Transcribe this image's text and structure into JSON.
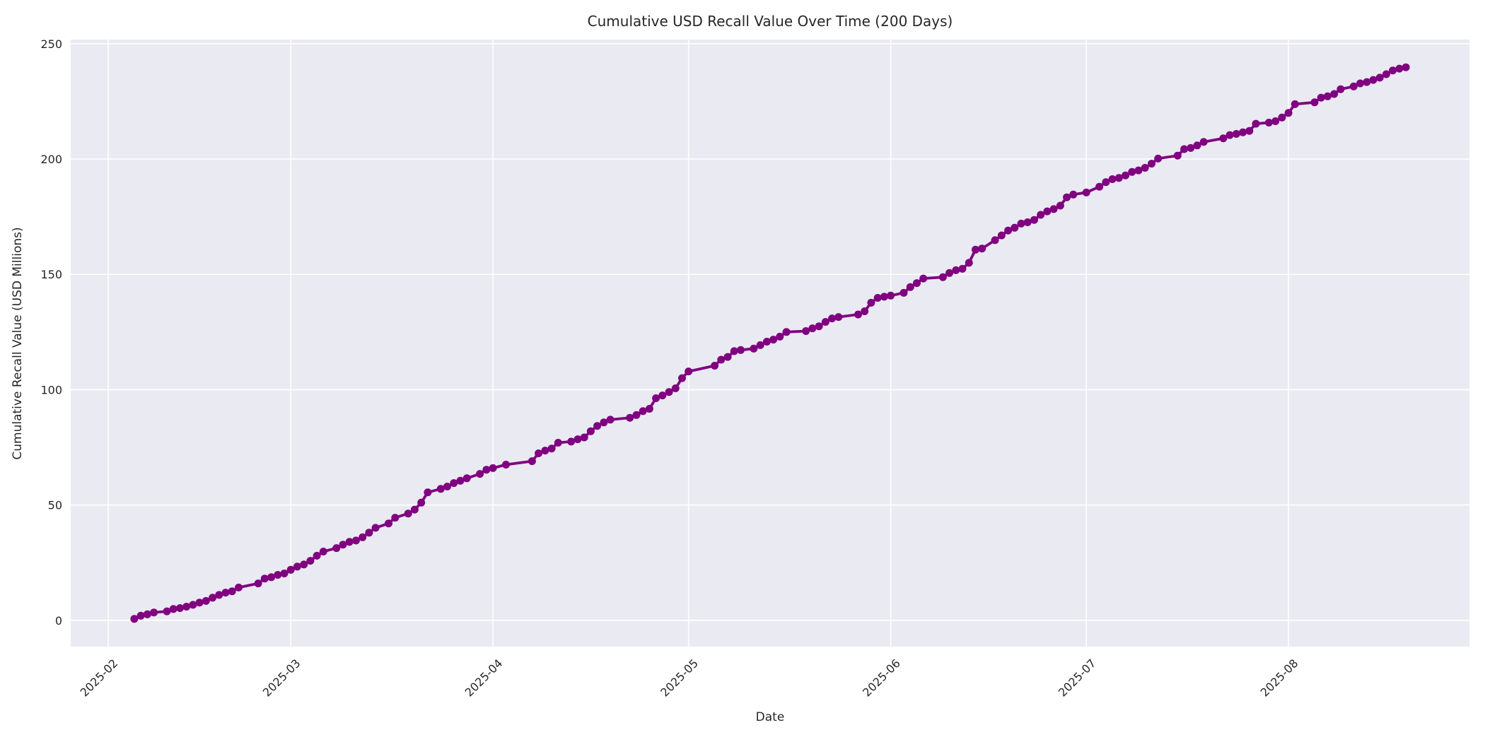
{
  "figure": {
    "background": "#ffffff"
  },
  "chart_data": {
    "type": "line",
    "title": "Cumulative USD Recall Value Over Time (200 Days)",
    "xlabel": "Date",
    "ylabel": "Cumulative Recall Value (USD Millions)",
    "line_color": "#800080",
    "marker": "o",
    "plot_background": "#eaeaf2",
    "grid_color": "#ffffff",
    "text_color": "#262626",
    "grid": true,
    "legend": "none",
    "y_ticks": [
      0,
      50,
      100,
      150,
      200,
      250
    ],
    "ylim": [
      -11.4,
      251.8
    ],
    "x_tick_labels": [
      "2025-02",
      "2025-03",
      "2025-04",
      "2025-05",
      "2025-06",
      "2025-07",
      "2025-08"
    ],
    "x_tick_dates": [
      "2025-02-01",
      "2025-03-01",
      "2025-04-01",
      "2025-05-01",
      "2025-06-01",
      "2025-07-01",
      "2025-08-01"
    ],
    "points": [
      [
        "2025-02-05",
        0.6
      ],
      [
        "2025-02-06",
        2.0
      ],
      [
        "2025-02-07",
        2.6
      ],
      [
        "2025-02-08",
        3.4
      ],
      [
        "2025-02-10",
        3.9
      ],
      [
        "2025-02-11",
        4.9
      ],
      [
        "2025-02-12",
        5.3
      ],
      [
        "2025-02-13",
        5.9
      ],
      [
        "2025-02-14",
        6.7
      ],
      [
        "2025-02-15",
        7.7
      ],
      [
        "2025-02-16",
        8.4
      ],
      [
        "2025-02-17",
        9.8
      ],
      [
        "2025-02-18",
        11.0
      ],
      [
        "2025-02-19",
        12.0
      ],
      [
        "2025-02-20",
        12.6
      ],
      [
        "2025-02-21",
        14.2
      ],
      [
        "2025-02-24",
        16.0
      ],
      [
        "2025-02-25",
        18.1
      ],
      [
        "2025-02-26",
        18.7
      ],
      [
        "2025-02-27",
        19.7
      ],
      [
        "2025-02-28",
        20.3
      ],
      [
        "2025-03-01",
        21.9
      ],
      [
        "2025-03-02",
        23.3
      ],
      [
        "2025-03-03",
        24.2
      ],
      [
        "2025-03-04",
        25.8
      ],
      [
        "2025-03-05",
        28.0
      ],
      [
        "2025-03-06",
        29.8
      ],
      [
        "2025-03-08",
        31.3
      ],
      [
        "2025-03-09",
        32.8
      ],
      [
        "2025-03-10",
        34.0
      ],
      [
        "2025-03-11",
        34.6
      ],
      [
        "2025-03-12",
        36.0
      ],
      [
        "2025-03-13",
        38.0
      ],
      [
        "2025-03-14",
        40.1
      ],
      [
        "2025-03-16",
        42.0
      ],
      [
        "2025-03-17",
        44.5
      ],
      [
        "2025-03-19",
        46.3
      ],
      [
        "2025-03-20",
        48.0
      ],
      [
        "2025-03-21",
        51.0
      ],
      [
        "2025-03-22",
        55.5
      ],
      [
        "2025-03-24",
        57.0
      ],
      [
        "2025-03-25",
        58.0
      ],
      [
        "2025-03-26",
        59.5
      ],
      [
        "2025-03-27",
        60.5
      ],
      [
        "2025-03-28",
        61.6
      ],
      [
        "2025-03-30",
        63.5
      ],
      [
        "2025-03-31",
        65.3
      ],
      [
        "2025-04-01",
        66.0
      ],
      [
        "2025-04-03",
        67.5
      ],
      [
        "2025-04-07",
        69.0
      ],
      [
        "2025-04-08",
        72.4
      ],
      [
        "2025-04-09",
        73.6
      ],
      [
        "2025-04-10",
        74.5
      ],
      [
        "2025-04-11",
        77.0
      ],
      [
        "2025-04-13",
        77.5
      ],
      [
        "2025-04-14",
        78.5
      ],
      [
        "2025-04-15",
        79.3
      ],
      [
        "2025-04-16",
        82.0
      ],
      [
        "2025-04-17",
        84.3
      ],
      [
        "2025-04-18",
        85.8
      ],
      [
        "2025-04-19",
        87.0
      ],
      [
        "2025-04-22",
        87.8
      ],
      [
        "2025-04-23",
        89.0
      ],
      [
        "2025-04-24",
        90.7
      ],
      [
        "2025-04-25",
        91.7
      ],
      [
        "2025-04-26",
        96.3
      ],
      [
        "2025-04-27",
        97.5
      ],
      [
        "2025-04-28",
        99.0
      ],
      [
        "2025-04-29",
        100.6
      ],
      [
        "2025-04-30",
        105.0
      ],
      [
        "2025-05-01",
        107.9
      ],
      [
        "2025-05-05",
        110.4
      ],
      [
        "2025-05-06",
        113.0
      ],
      [
        "2025-05-07",
        114.2
      ],
      [
        "2025-05-08",
        116.7
      ],
      [
        "2025-05-09",
        117.2
      ],
      [
        "2025-05-11",
        117.8
      ],
      [
        "2025-05-12",
        119.3
      ],
      [
        "2025-05-13",
        120.8
      ],
      [
        "2025-05-14",
        121.7
      ],
      [
        "2025-05-15",
        123.0
      ],
      [
        "2025-05-16",
        125.0
      ],
      [
        "2025-05-19",
        125.4
      ],
      [
        "2025-05-20",
        126.6
      ],
      [
        "2025-05-21",
        127.5
      ],
      [
        "2025-05-22",
        129.4
      ],
      [
        "2025-05-23",
        130.9
      ],
      [
        "2025-05-24",
        131.5
      ],
      [
        "2025-05-27",
        132.6
      ],
      [
        "2025-05-28",
        134.0
      ],
      [
        "2025-05-29",
        137.7
      ],
      [
        "2025-05-30",
        139.8
      ],
      [
        "2025-05-31",
        140.3
      ],
      [
        "2025-06-01",
        140.8
      ],
      [
        "2025-06-03",
        142.0
      ],
      [
        "2025-06-04",
        144.5
      ],
      [
        "2025-06-05",
        146.2
      ],
      [
        "2025-06-06",
        148.2
      ],
      [
        "2025-06-09",
        148.8
      ],
      [
        "2025-06-10",
        150.6
      ],
      [
        "2025-06-11",
        151.8
      ],
      [
        "2025-06-12",
        152.4
      ],
      [
        "2025-06-13",
        155.0
      ],
      [
        "2025-06-14",
        160.7
      ],
      [
        "2025-06-15",
        161.2
      ],
      [
        "2025-06-17",
        164.8
      ],
      [
        "2025-06-18",
        166.9
      ],
      [
        "2025-06-19",
        169.0
      ],
      [
        "2025-06-20",
        170.2
      ],
      [
        "2025-06-21",
        172.0
      ],
      [
        "2025-06-22",
        172.6
      ],
      [
        "2025-06-23",
        173.6
      ],
      [
        "2025-06-24",
        175.8
      ],
      [
        "2025-06-25",
        177.3
      ],
      [
        "2025-06-26",
        178.3
      ],
      [
        "2025-06-27",
        179.8
      ],
      [
        "2025-06-28",
        183.4
      ],
      [
        "2025-06-29",
        184.6
      ],
      [
        "2025-07-01",
        185.5
      ],
      [
        "2025-07-03",
        188.0
      ],
      [
        "2025-07-04",
        190.0
      ],
      [
        "2025-07-05",
        191.3
      ],
      [
        "2025-07-06",
        191.8
      ],
      [
        "2025-07-07",
        192.9
      ],
      [
        "2025-07-08",
        194.4
      ],
      [
        "2025-07-09",
        195.1
      ],
      [
        "2025-07-10",
        196.2
      ],
      [
        "2025-07-11",
        198.0
      ],
      [
        "2025-07-12",
        200.2
      ],
      [
        "2025-07-15",
        201.5
      ],
      [
        "2025-07-16",
        204.3
      ],
      [
        "2025-07-17",
        204.8
      ],
      [
        "2025-07-18",
        205.9
      ],
      [
        "2025-07-19",
        207.4
      ],
      [
        "2025-07-22",
        209.0
      ],
      [
        "2025-07-23",
        210.4
      ],
      [
        "2025-07-24",
        210.9
      ],
      [
        "2025-07-25",
        211.6
      ],
      [
        "2025-07-26",
        212.2
      ],
      [
        "2025-07-27",
        215.3
      ],
      [
        "2025-07-29",
        215.8
      ],
      [
        "2025-07-30",
        216.4
      ],
      [
        "2025-07-31",
        218.0
      ],
      [
        "2025-08-01",
        220.0
      ],
      [
        "2025-08-02",
        223.8
      ],
      [
        "2025-08-05",
        224.6
      ],
      [
        "2025-08-06",
        226.6
      ],
      [
        "2025-08-07",
        227.2
      ],
      [
        "2025-08-08",
        228.2
      ],
      [
        "2025-08-09",
        230.3
      ],
      [
        "2025-08-11",
        231.5
      ],
      [
        "2025-08-12",
        232.8
      ],
      [
        "2025-08-13",
        233.4
      ],
      [
        "2025-08-14",
        234.3
      ],
      [
        "2025-08-15",
        235.3
      ],
      [
        "2025-08-16",
        236.8
      ],
      [
        "2025-08-17",
        238.4
      ],
      [
        "2025-08-18",
        239.2
      ],
      [
        "2025-08-19",
        239.8
      ]
    ]
  }
}
